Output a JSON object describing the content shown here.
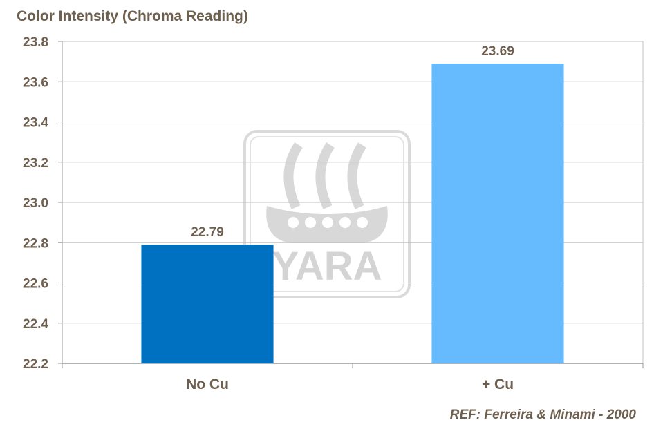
{
  "chart_data": {
    "type": "bar",
    "title": "Color Intensity (Chroma Reading)",
    "categories": [
      "No Cu",
      "+ Cu"
    ],
    "values": [
      22.79,
      23.69
    ],
    "data_labels": [
      "22.79",
      "23.69"
    ],
    "ylim": [
      22.2,
      23.8
    ],
    "yticks": [
      22.2,
      22.4,
      22.6,
      22.8,
      23.0,
      23.2,
      23.4,
      23.6,
      23.8
    ],
    "ytick_labels": [
      "22.2",
      "22.4",
      "22.6",
      "22.8",
      "23.0",
      "23.2",
      "23.4",
      "23.6",
      "23.8"
    ],
    "xlabel": "",
    "ylabel": "",
    "grid": true,
    "legend": "none",
    "colors": [
      "#0070c0",
      "#66bbff"
    ]
  },
  "watermark": {
    "logo_text": "YARA",
    "color": "#d4d4d4"
  },
  "reference": "REF: Ferreira & Minami - 2000",
  "colors": {
    "text": "#6e5f4e",
    "grid": "#c0c0c0",
    "axis": "#9a9a9a"
  }
}
